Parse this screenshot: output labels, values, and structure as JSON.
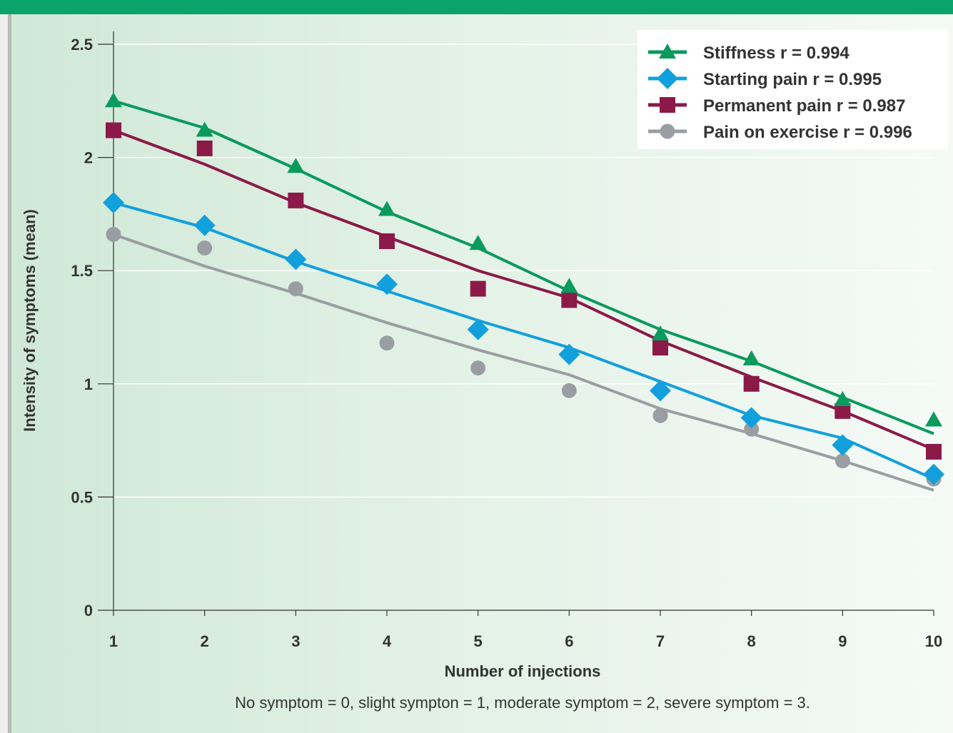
{
  "chart_data": {
    "type": "line",
    "xlabel": "Number of injections",
    "ylabel": "Intensity of symptoms (mean)",
    "x": [
      1,
      2,
      3,
      4,
      5,
      6,
      7,
      8,
      9,
      10
    ],
    "xlim": [
      1,
      10
    ],
    "ylim": [
      0,
      2.5
    ],
    "yticks": [
      "0",
      "0.5",
      "1",
      "1.5",
      "2",
      "2.5"
    ],
    "xticks": [
      "1",
      "2",
      "3",
      "4",
      "5",
      "6",
      "7",
      "8",
      "9",
      "10"
    ],
    "grid": "horizontal",
    "legend_position": "top-right",
    "footnote": "No symptom = 0, slight sympton = 1, moderate symptom = 2, severe symptom = 3.",
    "series": [
      {
        "name": "Stiffness r = 0.994",
        "color": "#0a9a5e",
        "marker": "triangle",
        "points": [
          2.25,
          2.12,
          1.96,
          1.77,
          1.62,
          1.43,
          1.22,
          1.11,
          0.93,
          0.84
        ],
        "fit": [
          2.25,
          2.13,
          1.95,
          1.76,
          1.6,
          1.41,
          1.24,
          1.1,
          0.94,
          0.78
        ]
      },
      {
        "name": "Starting pain r = 0.995",
        "color": "#12a0dc",
        "marker": "diamond",
        "points": [
          1.8,
          1.7,
          1.55,
          1.44,
          1.24,
          1.13,
          0.97,
          0.85,
          0.73,
          0.6
        ],
        "fit": [
          1.8,
          1.69,
          1.54,
          1.41,
          1.28,
          1.16,
          1.01,
          0.86,
          0.76,
          0.58
        ]
      },
      {
        "name": "Permanent pain r = 0.987",
        "color": "#8c1a48",
        "marker": "square",
        "points": [
          2.12,
          2.04,
          1.81,
          1.63,
          1.42,
          1.37,
          1.16,
          1.0,
          0.88,
          0.7
        ],
        "fit": [
          2.12,
          1.97,
          1.8,
          1.65,
          1.5,
          1.38,
          1.19,
          1.03,
          0.88,
          0.71
        ]
      },
      {
        "name": "Pain on exercise r = 0.996",
        "color": "#9a9ea2",
        "marker": "circle",
        "points": [
          1.66,
          1.6,
          1.42,
          1.18,
          1.07,
          0.97,
          0.86,
          0.8,
          0.66,
          0.58
        ],
        "fit": [
          1.66,
          1.52,
          1.4,
          1.27,
          1.15,
          1.04,
          0.89,
          0.78,
          0.66,
          0.53
        ]
      }
    ]
  }
}
